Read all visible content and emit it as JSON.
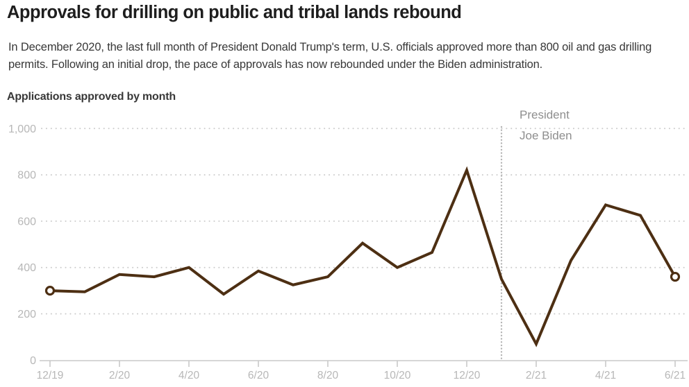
{
  "header": {
    "title": "Approvals for drilling on public and tribal lands rebound",
    "subtitle": "In December 2020, the last full month of President Donald Trump's term, U.S. officials approved more than 800 oil and gas drilling permits. Following an initial drop, the pace of approvals has now rebounded under the Biden administration."
  },
  "chart_data": {
    "type": "line",
    "title": "Approvals for drilling on public and tribal lands rebound",
    "axis_title": "Applications approved by month",
    "categories": [
      "12/19",
      "1/20",
      "2/20",
      "3/20",
      "4/20",
      "5/20",
      "6/20",
      "7/20",
      "8/20",
      "9/20",
      "10/20",
      "11/20",
      "12/20",
      "1/21",
      "2/21",
      "3/21",
      "4/21",
      "5/21",
      "6/21"
    ],
    "values": [
      300,
      295,
      370,
      360,
      400,
      285,
      385,
      325,
      360,
      505,
      400,
      465,
      820,
      350,
      70,
      430,
      670,
      625,
      360
    ],
    "x_tick_labels": [
      "12/19",
      "2/20",
      "4/20",
      "6/20",
      "8/20",
      "10/20",
      "12/20",
      "2/21",
      "4/21",
      "6/21"
    ],
    "y_ticks": [
      0,
      200,
      400,
      600,
      800,
      1000
    ],
    "y_tick_labels": [
      "0",
      "200",
      "400",
      "600",
      "800",
      "1,000"
    ],
    "ylim": [
      0,
      1000
    ],
    "xlabel": "",
    "ylabel": "Applications approved by month",
    "grid": "dotted-horizontal",
    "legend": "none",
    "markers": "open circles on first and last points",
    "annotation": {
      "line_at_category": "1/21",
      "lines": [
        "President",
        "Joe Biden"
      ]
    },
    "colors": {
      "line": "#4d2f13",
      "marker_fill": "#ffffff",
      "grid": "#cbcbcb",
      "axis": "#c9c9c9",
      "axis_labels": "#b7b7b7",
      "annotation_text": "#8e8e8e",
      "annotation_line": "#b5b5b5",
      "title": "#1e1e1e",
      "subtitle": "#383838"
    }
  }
}
